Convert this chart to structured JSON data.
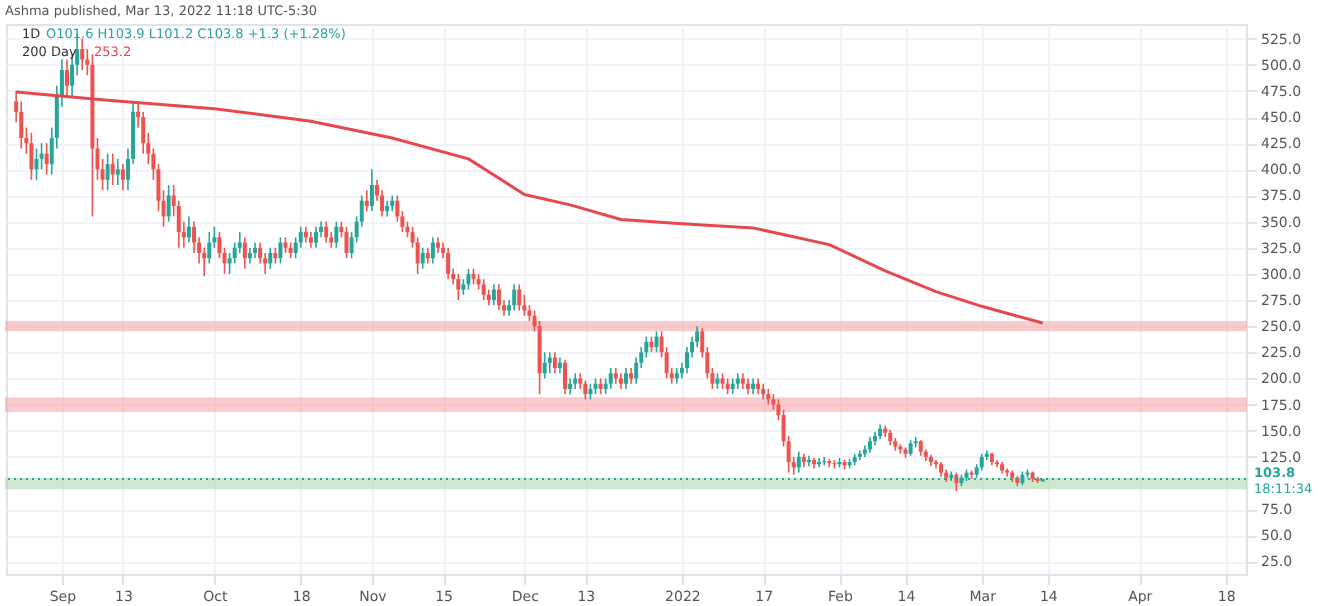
{
  "chart_data": {
    "type": "candlestick",
    "title": "1D",
    "annotations": [
      "Ashma published, Mar 13, 2022 11:18 UTC-5:30",
      "O101.6 H103.9 L101.2 C103.8 +1.3 (+1.28%)",
      "253.2",
      "18:11:34"
    ],
    "x": [
      "2021-08-23",
      "2021-08-24",
      "2021-08-25",
      "2021-08-26",
      "2021-08-27",
      "2021-08-28",
      "2021-08-29",
      "2021-08-30",
      "2021-08-31",
      "2021-09-01",
      "2021-09-02",
      "2021-09-03",
      "2021-09-04",
      "2021-09-05",
      "2021-09-06",
      "2021-09-07",
      "2021-09-08",
      "2021-09-09",
      "2021-09-10",
      "2021-09-11",
      "2021-09-12",
      "2021-09-13",
      "2021-09-14",
      "2021-09-15",
      "2021-09-16",
      "2021-09-17",
      "2021-09-18",
      "2021-09-19",
      "2021-09-20",
      "2021-09-21",
      "2021-09-22",
      "2021-09-23",
      "2021-09-24",
      "2021-09-25",
      "2021-09-26",
      "2021-09-27",
      "2021-09-28",
      "2021-09-29",
      "2021-09-30",
      "2021-10-01",
      "2021-10-02",
      "2021-10-03",
      "2021-10-04",
      "2021-10-05",
      "2021-10-06",
      "2021-10-07",
      "2021-10-08",
      "2021-10-09",
      "2021-10-10",
      "2021-10-11",
      "2021-10-12",
      "2021-10-13",
      "2021-10-14",
      "2021-10-15",
      "2021-10-16",
      "2021-10-17",
      "2021-10-18",
      "2021-10-19",
      "2021-10-20",
      "2021-10-21",
      "2021-10-22",
      "2021-10-23",
      "2021-10-24",
      "2021-10-25",
      "2021-10-26",
      "2021-10-27",
      "2021-10-28",
      "2021-10-29",
      "2021-10-30",
      "2021-10-31",
      "2021-11-01",
      "2021-11-02",
      "2021-11-03",
      "2021-11-04",
      "2021-11-05",
      "2021-11-06",
      "2021-11-07",
      "2021-11-08",
      "2021-11-09",
      "2021-11-10",
      "2021-11-11",
      "2021-11-12",
      "2021-11-13",
      "2021-11-14",
      "2021-11-15",
      "2021-11-16",
      "2021-11-17",
      "2021-11-18",
      "2021-11-19",
      "2021-11-20",
      "2021-11-21",
      "2021-11-22",
      "2021-11-23",
      "2021-11-24",
      "2021-11-25",
      "2021-11-26",
      "2021-11-27",
      "2021-11-28",
      "2021-11-29",
      "2021-11-30",
      "2021-12-01",
      "2021-12-02",
      "2021-12-03",
      "2021-12-04",
      "2021-12-05",
      "2021-12-06",
      "2021-12-07",
      "2021-12-08",
      "2021-12-09",
      "2021-12-10",
      "2021-12-11",
      "2021-12-12",
      "2021-12-13",
      "2021-12-14",
      "2021-12-15",
      "2021-12-16",
      "2021-12-17",
      "2021-12-18",
      "2021-12-19",
      "2021-12-20",
      "2021-12-21",
      "2021-12-22",
      "2021-12-23",
      "2021-12-24",
      "2021-12-25",
      "2021-12-26",
      "2021-12-27",
      "2021-12-28",
      "2021-12-29",
      "2021-12-30",
      "2021-12-31",
      "2022-01-01",
      "2022-01-02",
      "2022-01-03",
      "2022-01-04",
      "2022-01-05",
      "2022-01-06",
      "2022-01-07",
      "2022-01-08",
      "2022-01-09",
      "2022-01-10",
      "2022-01-11",
      "2022-01-12",
      "2022-01-13",
      "2022-01-14",
      "2022-01-15",
      "2022-01-16",
      "2022-01-17",
      "2022-01-18",
      "2022-01-19",
      "2022-01-20",
      "2022-01-21",
      "2022-01-22",
      "2022-01-23",
      "2022-01-24",
      "2022-01-25",
      "2022-01-26",
      "2022-01-27",
      "2022-01-28",
      "2022-01-29",
      "2022-01-30",
      "2022-01-31",
      "2022-02-01",
      "2022-02-02",
      "2022-02-03",
      "2022-02-04",
      "2022-02-05",
      "2022-02-06",
      "2022-02-07",
      "2022-02-08",
      "2022-02-09",
      "2022-02-10",
      "2022-02-11",
      "2022-02-12",
      "2022-02-13",
      "2022-02-14",
      "2022-02-15",
      "2022-02-16",
      "2022-02-17",
      "2022-02-18",
      "2022-02-19",
      "2022-02-20",
      "2022-02-21",
      "2022-02-22",
      "2022-02-23",
      "2022-02-24",
      "2022-02-25",
      "2022-02-26",
      "2022-02-27",
      "2022-02-28",
      "2022-03-01",
      "2022-03-02",
      "2022-03-03",
      "2022-03-04",
      "2022-03-05",
      "2022-03-06",
      "2022-03-07",
      "2022-03-08",
      "2022-03-09",
      "2022-03-10",
      "2022-03-11",
      "2022-03-12",
      "2022-03-13"
    ],
    "ohlc": [
      [
        465,
        475,
        445,
        455
      ],
      [
        455,
        465,
        420,
        430
      ],
      [
        430,
        440,
        415,
        425
      ],
      [
        425,
        435,
        390,
        400
      ],
      [
        400,
        420,
        390,
        410
      ],
      [
        410,
        425,
        400,
        415
      ],
      [
        415,
        425,
        395,
        405
      ],
      [
        405,
        440,
        395,
        430
      ],
      [
        430,
        480,
        420,
        470
      ],
      [
        470,
        505,
        460,
        495
      ],
      [
        495,
        505,
        470,
        480
      ],
      [
        480,
        510,
        470,
        500
      ],
      [
        500,
        530,
        490,
        515
      ],
      [
        515,
        525,
        495,
        505
      ],
      [
        505,
        515,
        490,
        500
      ],
      [
        500,
        510,
        355,
        420
      ],
      [
        420,
        430,
        390,
        400
      ],
      [
        400,
        410,
        380,
        390
      ],
      [
        390,
        415,
        380,
        405
      ],
      [
        405,
        415,
        385,
        395
      ],
      [
        395,
        410,
        385,
        400
      ],
      [
        400,
        405,
        380,
        390
      ],
      [
        390,
        420,
        380,
        410
      ],
      [
        410,
        465,
        405,
        455
      ],
      [
        455,
        465,
        440,
        450
      ],
      [
        450,
        455,
        415,
        425
      ],
      [
        425,
        435,
        405,
        415
      ],
      [
        415,
        420,
        390,
        400
      ],
      [
        400,
        405,
        360,
        370
      ],
      [
        370,
        380,
        345,
        355
      ],
      [
        355,
        385,
        350,
        375
      ],
      [
        375,
        385,
        355,
        365
      ],
      [
        365,
        370,
        325,
        340
      ],
      [
        340,
        350,
        325,
        335
      ],
      [
        335,
        355,
        330,
        345
      ],
      [
        345,
        350,
        320,
        330
      ],
      [
        330,
        335,
        310,
        320
      ],
      [
        320,
        325,
        298,
        315
      ],
      [
        315,
        340,
        310,
        330
      ],
      [
        330,
        345,
        325,
        335
      ],
      [
        335,
        340,
        315,
        320
      ],
      [
        320,
        325,
        300,
        310
      ],
      [
        310,
        320,
        300,
        315
      ],
      [
        315,
        330,
        310,
        325
      ],
      [
        325,
        340,
        320,
        330
      ],
      [
        330,
        335,
        305,
        315
      ],
      [
        315,
        325,
        310,
        320
      ],
      [
        320,
        330,
        315,
        325
      ],
      [
        325,
        330,
        310,
        315
      ],
      [
        315,
        320,
        300,
        310
      ],
      [
        310,
        325,
        305,
        320
      ],
      [
        320,
        325,
        310,
        315
      ],
      [
        315,
        335,
        310,
        330
      ],
      [
        330,
        335,
        320,
        325
      ],
      [
        325,
        330,
        315,
        320
      ],
      [
        320,
        335,
        315,
        330
      ],
      [
        330,
        345,
        325,
        340
      ],
      [
        340,
        345,
        330,
        335
      ],
      [
        335,
        340,
        325,
        330
      ],
      [
        330,
        345,
        325,
        340
      ],
      [
        340,
        350,
        335,
        345
      ],
      [
        345,
        350,
        330,
        335
      ],
      [
        335,
        340,
        325,
        330
      ],
      [
        330,
        350,
        325,
        345
      ],
      [
        345,
        350,
        335,
        340
      ],
      [
        340,
        345,
        315,
        320
      ],
      [
        320,
        340,
        315,
        335
      ],
      [
        335,
        355,
        330,
        350
      ],
      [
        350,
        375,
        345,
        370
      ],
      [
        370,
        380,
        360,
        365
      ],
      [
        365,
        400,
        360,
        385
      ],
      [
        385,
        390,
        370,
        375
      ],
      [
        375,
        380,
        355,
        360
      ],
      [
        360,
        370,
        355,
        365
      ],
      [
        365,
        375,
        360,
        370
      ],
      [
        370,
        375,
        350,
        355
      ],
      [
        355,
        360,
        340,
        345
      ],
      [
        345,
        350,
        335,
        340
      ],
      [
        340,
        345,
        325,
        330
      ],
      [
        330,
        335,
        300,
        310
      ],
      [
        310,
        325,
        305,
        320
      ],
      [
        320,
        325,
        310,
        315
      ],
      [
        315,
        335,
        310,
        330
      ],
      [
        330,
        335,
        320,
        325
      ],
      [
        325,
        330,
        315,
        320
      ],
      [
        320,
        325,
        295,
        300
      ],
      [
        300,
        305,
        290,
        295
      ],
      [
        295,
        300,
        275,
        285
      ],
      [
        285,
        295,
        280,
        290
      ],
      [
        290,
        305,
        285,
        300
      ],
      [
        300,
        305,
        290,
        295
      ],
      [
        295,
        300,
        285,
        290
      ],
      [
        290,
        295,
        275,
        280
      ],
      [
        280,
        285,
        270,
        275
      ],
      [
        275,
        290,
        270,
        285
      ],
      [
        285,
        290,
        265,
        270
      ],
      [
        270,
        275,
        260,
        265
      ],
      [
        265,
        275,
        260,
        270
      ],
      [
        270,
        290,
        265,
        285
      ],
      [
        285,
        290,
        265,
        270
      ],
      [
        270,
        280,
        260,
        265
      ],
      [
        265,
        270,
        255,
        260
      ],
      [
        260,
        265,
        245,
        250
      ],
      [
        250,
        255,
        185,
        205
      ],
      [
        205,
        225,
        200,
        215
      ],
      [
        215,
        225,
        205,
        220
      ],
      [
        220,
        225,
        205,
        210
      ],
      [
        210,
        220,
        205,
        215
      ],
      [
        215,
        218,
        185,
        190
      ],
      [
        190,
        200,
        185,
        195
      ],
      [
        195,
        205,
        190,
        200
      ],
      [
        200,
        205,
        190,
        195
      ],
      [
        195,
        198,
        180,
        185
      ],
      [
        185,
        195,
        180,
        190
      ],
      [
        190,
        200,
        185,
        195
      ],
      [
        195,
        200,
        185,
        190
      ],
      [
        190,
        200,
        185,
        195
      ],
      [
        195,
        210,
        190,
        205
      ],
      [
        205,
        210,
        195,
        200
      ],
      [
        200,
        205,
        190,
        195
      ],
      [
        195,
        210,
        190,
        205
      ],
      [
        205,
        210,
        195,
        200
      ],
      [
        200,
        220,
        195,
        215
      ],
      [
        215,
        230,
        210,
        225
      ],
      [
        225,
        240,
        220,
        235
      ],
      [
        235,
        240,
        225,
        230
      ],
      [
        230,
        245,
        225,
        240
      ],
      [
        240,
        245,
        220,
        225
      ],
      [
        225,
        230,
        200,
        205
      ],
      [
        205,
        210,
        195,
        200
      ],
      [
        200,
        210,
        195,
        205
      ],
      [
        205,
        215,
        200,
        210
      ],
      [
        210,
        230,
        205,
        225
      ],
      [
        225,
        240,
        220,
        235
      ],
      [
        235,
        250,
        230,
        245
      ],
      [
        245,
        248,
        220,
        225
      ],
      [
        225,
        230,
        200,
        205
      ],
      [
        205,
        210,
        190,
        195
      ],
      [
        195,
        205,
        190,
        200
      ],
      [
        200,
        205,
        190,
        195
      ],
      [
        195,
        200,
        185,
        190
      ],
      [
        190,
        200,
        185,
        195
      ],
      [
        195,
        205,
        190,
        200
      ],
      [
        200,
        205,
        190,
        195
      ],
      [
        195,
        200,
        185,
        190
      ],
      [
        190,
        200,
        185,
        195
      ],
      [
        195,
        200,
        185,
        190
      ],
      [
        190,
        195,
        180,
        185
      ],
      [
        185,
        190,
        175,
        180
      ],
      [
        180,
        185,
        170,
        175
      ],
      [
        175,
        180,
        160,
        165
      ],
      [
        165,
        170,
        135,
        140
      ],
      [
        140,
        145,
        110,
        120
      ],
      [
        120,
        125,
        108,
        115
      ],
      [
        115,
        130,
        110,
        125
      ],
      [
        125,
        128,
        115,
        120
      ],
      [
        120,
        126,
        116,
        122
      ],
      [
        122,
        124,
        114,
        118
      ],
      [
        118,
        124,
        115,
        120
      ],
      [
        120,
        125,
        117,
        121
      ],
      [
        121,
        123,
        115,
        119
      ],
      [
        119,
        122,
        114,
        118
      ],
      [
        118,
        124,
        115,
        120
      ],
      [
        120,
        122,
        113,
        117
      ],
      [
        117,
        123,
        114,
        120
      ],
      [
        120,
        128,
        117,
        125
      ],
      [
        125,
        131,
        122,
        128
      ],
      [
        128,
        136,
        125,
        132
      ],
      [
        132,
        144,
        129,
        140
      ],
      [
        140,
        149,
        136,
        145
      ],
      [
        145,
        156,
        142,
        152
      ],
      [
        152,
        155,
        144,
        148
      ],
      [
        148,
        151,
        136,
        140
      ],
      [
        140,
        143,
        131,
        135
      ],
      [
        135,
        137,
        128,
        132
      ],
      [
        132,
        134,
        124,
        128
      ],
      [
        128,
        141,
        126,
        138
      ],
      [
        138,
        144,
        134,
        140
      ],
      [
        140,
        141,
        126,
        130
      ],
      [
        130,
        132,
        121,
        125
      ],
      [
        125,
        127,
        116,
        120
      ],
      [
        120,
        122,
        114,
        118
      ],
      [
        118,
        120,
        106,
        110
      ],
      [
        110,
        113,
        101,
        105
      ],
      [
        105,
        111,
        102,
        108
      ],
      [
        108,
        110,
        92,
        100
      ],
      [
        100,
        108,
        97,
        105
      ],
      [
        105,
        113,
        102,
        110
      ],
      [
        110,
        112,
        104,
        108
      ],
      [
        108,
        118,
        105,
        115
      ],
      [
        115,
        128,
        112,
        125
      ],
      [
        125,
        131,
        122,
        128
      ],
      [
        128,
        129,
        117,
        120
      ],
      [
        120,
        122,
        115,
        118
      ],
      [
        118,
        120,
        109,
        112
      ],
      [
        112,
        114,
        106,
        110
      ],
      [
        110,
        112,
        101,
        105
      ],
      [
        105,
        107,
        97,
        100
      ],
      [
        100,
        111,
        98,
        108
      ],
      [
        108,
        113,
        105,
        110
      ],
      [
        110,
        111,
        101,
        104
      ],
      [
        104,
        106,
        100,
        102
      ],
      [
        101.6,
        103.9,
        101.2,
        103.8
      ]
    ],
    "colors": [
      "#ef5350",
      "#ef5350",
      "#ef5350",
      "#ef5350",
      "#26a69a",
      "#26a69a",
      "#ef5350",
      "#26a69a",
      "#26a69a",
      "#26a69a",
      "#ef5350",
      "#26a69a",
      "#26a69a",
      "#ef5350",
      "#ef5350",
      "#ef5350",
      "#ef5350",
      "#ef5350",
      "#26a69a",
      "#ef5350",
      "#26a69a",
      "#ef5350",
      "#26a69a",
      "#26a69a",
      "#ef5350",
      "#ef5350",
      "#ef5350",
      "#ef5350",
      "#ef5350",
      "#ef5350",
      "#26a69a",
      "#ef5350",
      "#ef5350",
      "#ef5350",
      "#26a69a",
      "#ef5350",
      "#ef5350",
      "#ef5350",
      "#26a69a",
      "#26a69a",
      "#ef5350",
      "#ef5350",
      "#26a69a",
      "#26a69a",
      "#26a69a",
      "#ef5350",
      "#26a69a",
      "#26a69a",
      "#ef5350",
      "#ef5350",
      "#26a69a",
      "#ef5350",
      "#26a69a",
      "#ef5350",
      "#ef5350",
      "#26a69a",
      "#26a69a",
      "#ef5350",
      "#ef5350",
      "#26a69a",
      "#26a69a",
      "#ef5350",
      "#ef5350",
      "#26a69a",
      "#ef5350",
      "#ef5350",
      "#26a69a",
      "#26a69a",
      "#26a69a",
      "#ef5350",
      "#26a69a",
      "#ef5350",
      "#ef5350",
      "#26a69a",
      "#26a69a",
      "#ef5350",
      "#ef5350",
      "#ef5350",
      "#ef5350",
      "#ef5350",
      "#26a69a",
      "#ef5350",
      "#26a69a",
      "#ef5350",
      "#ef5350",
      "#ef5350",
      "#ef5350",
      "#ef5350",
      "#26a69a",
      "#26a69a",
      "#ef5350",
      "#ef5350",
      "#ef5350",
      "#ef5350",
      "#26a69a",
      "#ef5350",
      "#ef5350",
      "#26a69a",
      "#26a69a",
      "#ef5350",
      "#ef5350",
      "#ef5350",
      "#ef5350",
      "#ef5350",
      "#26a69a",
      "#26a69a",
      "#ef5350",
      "#26a69a",
      "#ef5350",
      "#26a69a",
      "#26a69a",
      "#ef5350",
      "#ef5350",
      "#26a69a",
      "#26a69a",
      "#ef5350",
      "#26a69a",
      "#26a69a",
      "#ef5350",
      "#ef5350",
      "#26a69a",
      "#ef5350",
      "#26a69a",
      "#26a69a",
      "#26a69a",
      "#ef5350",
      "#26a69a",
      "#ef5350",
      "#ef5350",
      "#ef5350",
      "#26a69a",
      "#26a69a",
      "#26a69a",
      "#26a69a",
      "#26a69a",
      "#ef5350",
      "#ef5350",
      "#ef5350",
      "#26a69a",
      "#ef5350",
      "#ef5350",
      "#26a69a",
      "#26a69a",
      "#ef5350",
      "#ef5350",
      "#26a69a",
      "#ef5350",
      "#ef5350",
      "#ef5350",
      "#ef5350",
      "#ef5350",
      "#ef5350",
      "#ef5350",
      "#ef5350",
      "#26a69a",
      "#ef5350",
      "#26a69a",
      "#ef5350",
      "#26a69a",
      "#26a69a",
      "#ef5350",
      "#ef5350",
      "#26a69a",
      "#ef5350",
      "#26a69a",
      "#26a69a",
      "#26a69a",
      "#26a69a",
      "#26a69a",
      "#26a69a",
      "#26a69a",
      "#ef5350",
      "#ef5350",
      "#ef5350",
      "#ef5350",
      "#ef5350",
      "#26a69a",
      "#26a69a",
      "#ef5350",
      "#ef5350",
      "#ef5350",
      "#ef5350",
      "#ef5350",
      "#ef5350",
      "#26a69a",
      "#ef5350",
      "#26a69a",
      "#26a69a",
      "#ef5350",
      "#26a69a",
      "#26a69a",
      "#26a69a",
      "#ef5350",
      "#ef5350",
      "#ef5350",
      "#ef5350",
      "#ef5350",
      "#ef5350",
      "#26a69a",
      "#26a69a",
      "#ef5350",
      "#ef5350",
      "#26a69a"
    ],
    "series": [
      {
        "name": "200 Day",
        "type": "line",
        "color": "#e5484d",
        "x": [
          "2021-08-23",
          "2021-09-10",
          "2021-10-01",
          "2021-10-20",
          "2021-11-05",
          "2021-11-20",
          "2021-12-01",
          "2021-12-10",
          "2021-12-20",
          "2022-01-01",
          "2022-01-15",
          "2022-01-30",
          "2022-02-10",
          "2022-02-20",
          "2022-03-01",
          "2022-03-07",
          "2022-03-13"
        ],
        "values": [
          474,
          466,
          458,
          446,
          430,
          410,
          376,
          366,
          352,
          348,
          344,
          328,
          303,
          283,
          269,
          261,
          253
        ]
      }
    ],
    "bands": [
      {
        "axis": "y",
        "from": 246,
        "to": 254,
        "color": "#f7a1a6"
      },
      {
        "axis": "y",
        "from": 169,
        "to": 181,
        "color": "#f7a1a6"
      },
      {
        "axis": "y",
        "from": 95,
        "to": 104,
        "color": "#a5d6a7"
      }
    ],
    "ref_lines": [
      {
        "axis": "y",
        "value": 103.8,
        "label": "103.8",
        "color": "#26a69a",
        "line_style": "dotted"
      }
    ],
    "xlim": [
      "2021-08-21",
      "2022-04-22"
    ],
    "xticks": [
      {
        "value": "2021-09-01",
        "label": "Sep"
      },
      {
        "value": "2021-09-13",
        "label": "13"
      },
      {
        "value": "2021-10-01",
        "label": "Oct"
      },
      {
        "value": "2021-10-18",
        "label": "18"
      },
      {
        "value": "2021-11-01",
        "label": "Nov"
      },
      {
        "value": "2021-11-15",
        "label": "15"
      },
      {
        "value": "2021-12-01",
        "label": "Dec"
      },
      {
        "value": "2021-12-13",
        "label": "13"
      },
      {
        "value": "2022-01-01",
        "label": "2022"
      },
      {
        "value": "2022-01-17",
        "label": "17"
      },
      {
        "value": "2022-02-01",
        "label": "Feb"
      },
      {
        "value": "2022-02-14",
        "label": "14"
      },
      {
        "value": "2022-03-01",
        "label": "Mar"
      },
      {
        "value": "2022-03-14",
        "label": "14"
      },
      {
        "value": "2022-04-01",
        "label": "Apr"
      },
      {
        "value": "2022-04-18",
        "label": "18"
      }
    ],
    "ylim": [
      13,
      539
    ],
    "yticks": [
      {
        "value": 25,
        "label": "25.0"
      },
      {
        "value": 50,
        "label": "50.0"
      },
      {
        "value": 75,
        "label": "75.0"
      },
      {
        "value": 125,
        "label": "125.0"
      },
      {
        "value": 150,
        "label": "150.0"
      },
      {
        "value": 175,
        "label": "175.0"
      },
      {
        "value": 200,
        "label": "200.0"
      },
      {
        "value": 225,
        "label": "225.0"
      },
      {
        "value": 250,
        "label": "250.0"
      },
      {
        "value": 275,
        "label": "275.0"
      },
      {
        "value": 300,
        "label": "300.0"
      },
      {
        "value": 325,
        "label": "325.0"
      },
      {
        "value": 350,
        "label": "350.0"
      },
      {
        "value": 375,
        "label": "375.0"
      },
      {
        "value": 400,
        "label": "400.0"
      },
      {
        "value": 425,
        "label": "425.0"
      },
      {
        "value": 450,
        "label": "450.0"
      },
      {
        "value": 475,
        "label": "475.0"
      },
      {
        "value": 500,
        "label": "500.0"
      },
      {
        "value": 525,
        "label": "525.0"
      }
    ],
    "grid": true,
    "legend": "top left"
  }
}
